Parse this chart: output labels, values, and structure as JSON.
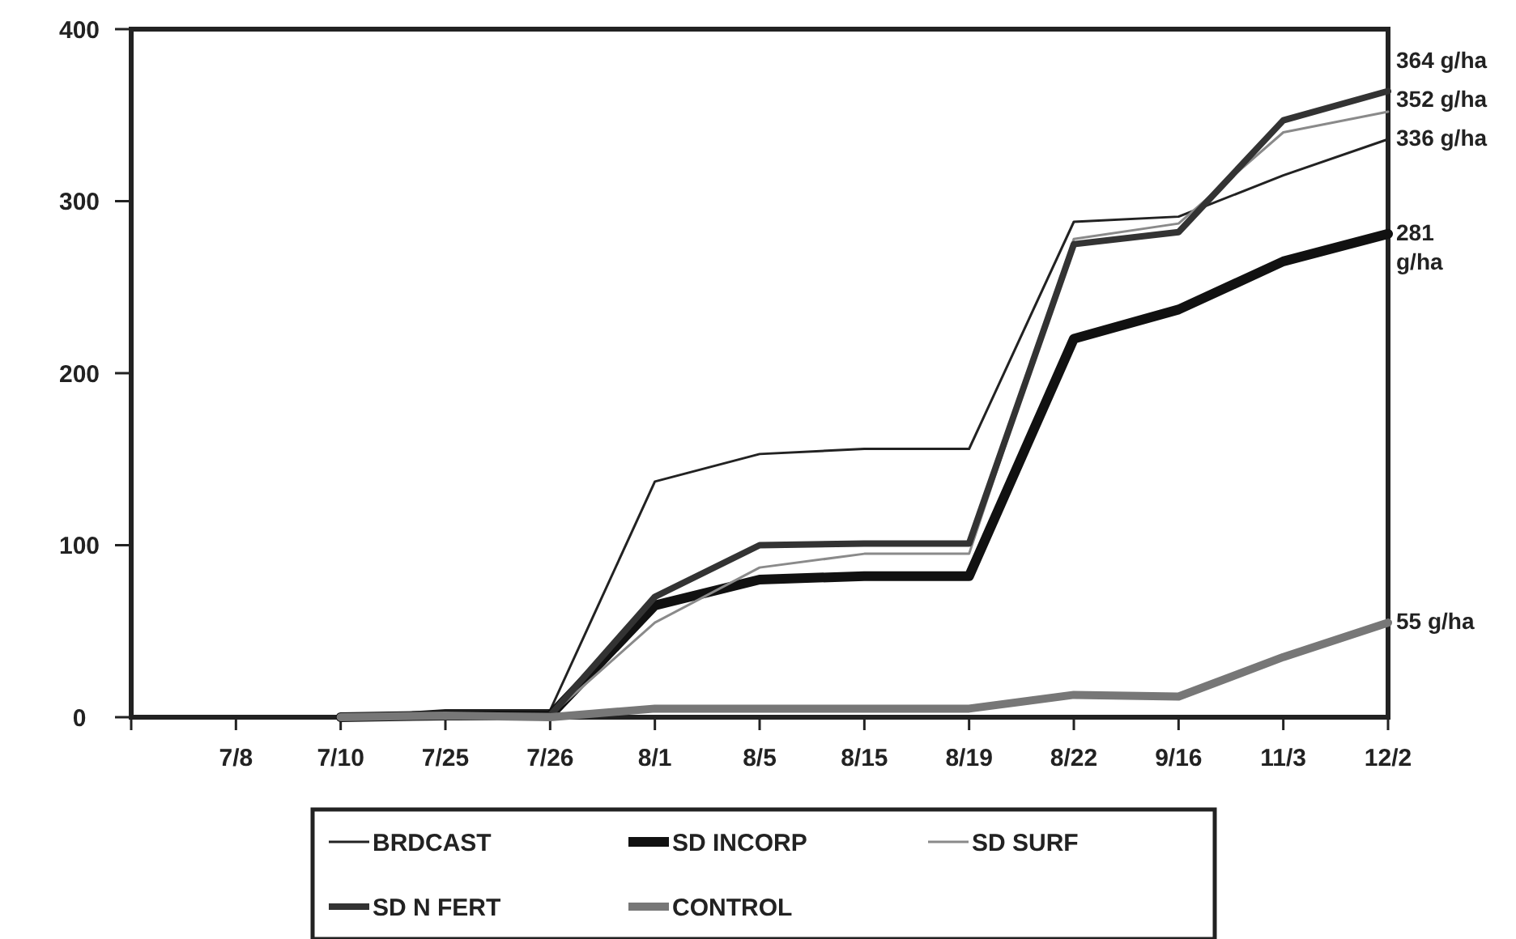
{
  "chart_data": {
    "type": "line",
    "categories": [
      null,
      "7/8",
      "7/10",
      "7/25",
      "7/26",
      "8/1",
      "8/5",
      "8/15",
      "8/19",
      "8/22",
      "9/16",
      "11/3",
      "12/2"
    ],
    "series": [
      {
        "name": "BRDCAST",
        "color": "#222222",
        "values": [
          null,
          null,
          0,
          4,
          4,
          137,
          153,
          156,
          156,
          288,
          291,
          315,
          336
        ]
      },
      {
        "name": "SD INCORP",
        "color": "#111111",
        "values": [
          null,
          null,
          0,
          1,
          1,
          65,
          80,
          82,
          82,
          220,
          237,
          265,
          281
        ]
      },
      {
        "name": "SD SURF",
        "color": "#8a8a8a",
        "values": [
          null,
          null,
          0,
          1,
          1,
          55,
          87,
          95,
          95,
          278,
          287,
          340,
          352
        ]
      },
      {
        "name": "SD N FERT",
        "color": "#333333",
        "values": [
          null,
          null,
          0,
          1,
          1,
          70,
          100,
          101,
          101,
          275,
          282,
          347,
          364
        ]
      },
      {
        "name": "CONTROL",
        "color": "#777777",
        "values": [
          null,
          null,
          0,
          1,
          0,
          5,
          5,
          5,
          5,
          13,
          12,
          35,
          55
        ]
      }
    ],
    "ylim": [
      0,
      400
    ],
    "yticks": [
      0,
      100,
      200,
      300,
      400
    ],
    "grid": false,
    "legend": "bottom",
    "marker": "none",
    "line_style": "solid",
    "annotations": [
      {
        "text": "364 g/ha",
        "x": "12/2",
        "y": 364
      },
      {
        "text": "352 g/ha",
        "x": "12/2",
        "y": 352
      },
      {
        "text": "336 g/ha",
        "x": "12/2",
        "y": 336
      },
      {
        "text": "281\ng/ha",
        "x": "12/2",
        "y": 281
      },
      {
        "text": "55 g/ha",
        "x": "12/2",
        "y": 55
      }
    ]
  }
}
